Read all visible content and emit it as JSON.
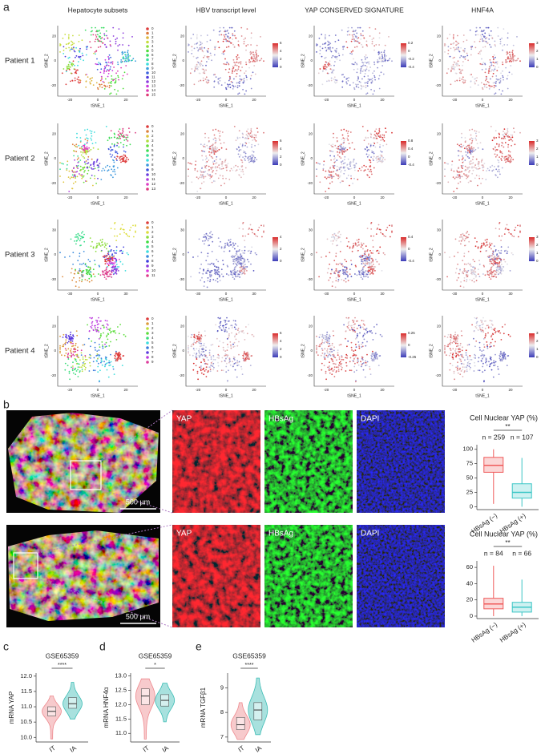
{
  "figure": {
    "panel_a": {
      "label": "a",
      "columns": [
        "Hepatocyte subsets",
        "HBV transcript level",
        "YAP CONSERVED SIGNATURE",
        "HNF4A"
      ],
      "x_axis_label": "tSNE_1",
      "y_axis_label": "tSNE_2",
      "patients": [
        {
          "name": "Patient 1",
          "xticks": [
            -20,
            0,
            20
          ],
          "yticks": [
            -20,
            0,
            20
          ],
          "clusters": [
            "0",
            "1",
            "2",
            "3",
            "4",
            "5",
            "6",
            "7",
            "8",
            "9",
            "10",
            "11",
            "12",
            "13",
            "14",
            "15"
          ],
          "colorbars": [
            [
              0,
              2,
              4,
              6
            ],
            [
              -0.4,
              -0.2,
              0,
              0.2
            ],
            [
              0,
              1,
              2,
              3
            ]
          ]
        },
        {
          "name": "Patient 2",
          "xticks": [
            -20,
            0,
            20
          ],
          "yticks": [
            -20,
            0,
            20
          ],
          "clusters": [
            "0",
            "1",
            "2",
            "3",
            "4",
            "5",
            "6",
            "7",
            "8",
            "9",
            "10",
            "11",
            "12",
            "13"
          ],
          "colorbars": [
            [
              0,
              2,
              4,
              6
            ],
            [
              -0.4,
              0,
              0.4,
              0.8
            ],
            [
              0,
              1,
              2,
              3
            ]
          ]
        },
        {
          "name": "Patient 3",
          "xticks": [
            -30,
            0,
            30
          ],
          "yticks": [
            -30,
            0,
            30
          ],
          "clusters": [
            "0",
            "1",
            "2",
            "3",
            "4",
            "5",
            "6",
            "7",
            "8",
            "9",
            "10",
            "11"
          ],
          "colorbars": [
            [
              0,
              2,
              4
            ],
            [
              -0.4,
              0,
              0.4
            ],
            [
              0,
              1,
              2,
              3
            ]
          ]
        },
        {
          "name": "Patient 4",
          "xticks": [
            -20,
            0,
            20
          ],
          "yticks": [
            -20,
            0,
            20
          ],
          "clusters": [
            "0",
            "1",
            "2",
            "3",
            "4",
            "5",
            "6",
            "7",
            "8",
            "9"
          ],
          "colorbars": [
            [
              0,
              2,
              4,
              6
            ],
            [
              -0.25,
              0,
              0.25
            ],
            [
              0,
              1,
              2,
              3
            ]
          ]
        }
      ]
    },
    "panel_b": {
      "label": "b",
      "rows": [
        {
          "channels": [
            "YAP",
            "HBsAg",
            "DAPI"
          ],
          "scale_bar": "500 µm"
        },
        {
          "channels": [
            "YAP",
            "HBsAg",
            "DAPI"
          ],
          "scale_bar": "500 µm"
        }
      ]
    },
    "panel_c": {
      "label": "c"
    },
    "panel_d": {
      "label": "d"
    },
    "panel_e": {
      "label": "e"
    }
  },
  "chart_data": [
    {
      "type": "box",
      "title": "Cell Nuclear YAP (%)",
      "significance": "**",
      "categories": [
        "HBsAg (−)",
        "HBsAg (+)"
      ],
      "n_labels": [
        "n = 259",
        "n = 107"
      ],
      "colors": [
        "#ef5b5b",
        "#3cc6c6"
      ],
      "boxes": [
        {
          "min": 5,
          "q1": 60,
          "median": 72,
          "q3": 86,
          "max": 100
        },
        {
          "min": 0,
          "q1": 15,
          "median": 25,
          "q3": 40,
          "max": 85
        }
      ],
      "ylim": [
        -5,
        108
      ],
      "yticks": [
        0,
        25,
        50,
        75,
        100
      ]
    },
    {
      "type": "box",
      "title": "Cell Nuclear YAP (%)",
      "significance": "**",
      "categories": [
        "HBsAg (−)",
        "HBsAg (+)"
      ],
      "n_labels": [
        "n = 84",
        "n = 66"
      ],
      "colors": [
        "#ef5b5b",
        "#3cc6c6"
      ],
      "boxes": [
        {
          "min": 0,
          "q1": 9,
          "median": 15,
          "q3": 22,
          "max": 62
        },
        {
          "min": 0,
          "q1": 5,
          "median": 11,
          "q3": 17,
          "max": 45
        }
      ],
      "ylim": [
        -3,
        68
      ],
      "yticks": [
        0,
        20,
        40,
        60
      ]
    },
    {
      "type": "violin",
      "title": "GSE65359",
      "y_label": "mRNA YAP",
      "significance": "****",
      "categories": [
        "IT",
        "IA"
      ],
      "colors": [
        "#ee8a8f",
        "#3dbdb5"
      ],
      "groups": [
        {
          "min": 9.95,
          "q1": 10.7,
          "median": 10.85,
          "q3": 11.0,
          "max": 11.35
        },
        {
          "min": 10.6,
          "q1": 10.95,
          "median": 11.1,
          "q3": 11.3,
          "max": 11.8
        }
      ],
      "ylim": [
        9.85,
        12.1
      ],
      "yticks": [
        {
          "value": 10,
          "label": "10.0"
        },
        10.5,
        {
          "value": 11,
          "label": "11.0"
        },
        11.5,
        {
          "value": 12,
          "label": "12.0"
        }
      ]
    },
    {
      "type": "violin",
      "title": "GSE65359",
      "y_label": "mRNA HNF4α",
      "significance": "*",
      "categories": [
        "IT",
        "IA"
      ],
      "colors": [
        "#ee8a8f",
        "#3dbdb5"
      ],
      "groups": [
        {
          "min": 10.8,
          "q1": 12.0,
          "median": 12.3,
          "q3": 12.55,
          "max": 12.9
        },
        {
          "min": 11.4,
          "q1": 11.95,
          "median": 12.15,
          "q3": 12.35,
          "max": 12.75
        }
      ],
      "ylim": [
        10.7,
        13.1
      ],
      "yticks": [
        {
          "value": 11,
          "label": "11.0"
        },
        11.5,
        {
          "value": 12,
          "label": "12.0"
        },
        12.5,
        {
          "value": 13,
          "label": "13.0"
        }
      ]
    },
    {
      "type": "violin",
      "title": "GSE65359",
      "y_label": "mRNA TGFβ1",
      "significance": "****",
      "categories": [
        "IT",
        "IA"
      ],
      "colors": [
        "#ee8a8f",
        "#3dbdb5"
      ],
      "groups": [
        {
          "min": 6.9,
          "q1": 7.3,
          "median": 7.5,
          "q3": 7.8,
          "max": 8.4
        },
        {
          "min": 7.1,
          "q1": 7.7,
          "median": 8.1,
          "q3": 8.4,
          "max": 9.4
        }
      ],
      "ylim": [
        6.8,
        9.6
      ],
      "yticks": [
        7,
        8,
        9
      ]
    }
  ]
}
